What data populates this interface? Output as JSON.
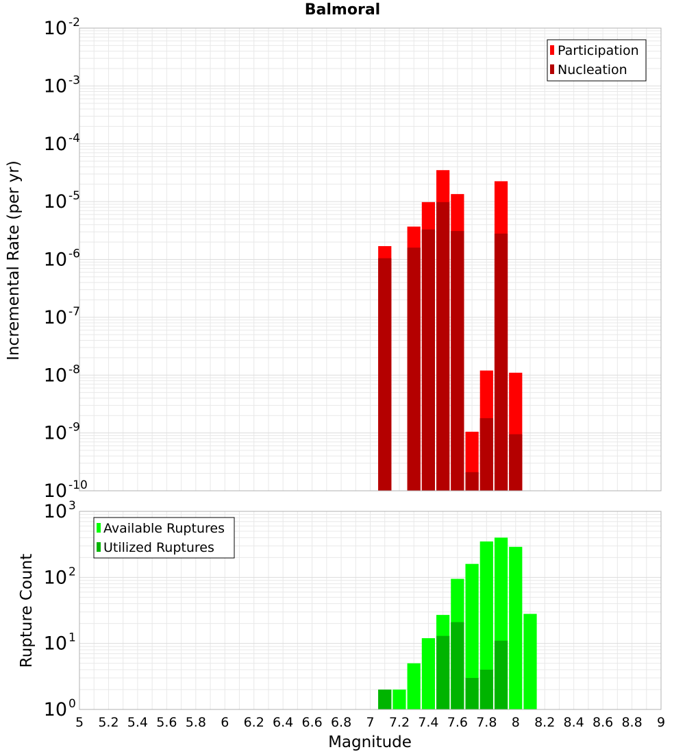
{
  "title": "Balmoral",
  "colors": {
    "participation": "#ff0000",
    "nucleation": "#b40000",
    "available": "#00ff00",
    "utilized": "#00b400",
    "grid": "#e8e8e8",
    "frame": "#b0b0b0"
  },
  "chart_data": [
    {
      "type": "bar",
      "title": "Balmoral",
      "xlabel": "Magnitude",
      "ylabel": "Incremental Rate (per yr)",
      "yscale": "log",
      "xlim": [
        5,
        9
      ],
      "ylim_exponents": [
        -10,
        -2
      ],
      "bin_width": 0.1,
      "x": [
        7.1,
        7.3,
        7.4,
        7.5,
        7.6,
        7.7,
        7.8,
        7.9,
        8.0
      ],
      "series": [
        {
          "name": "Participation",
          "values": [
            1.7e-06,
            3.7e-06,
            9.8e-06,
            3.5e-05,
            1.35e-05,
            1.05e-09,
            1.2e-08,
            2.25e-05,
            1.1e-08
          ]
        },
        {
          "name": "Nucleation",
          "values": [
            1.05e-06,
            1.6e-06,
            3.3e-06,
            9.8e-06,
            3.1e-06,
            2.1e-10,
            1.8e-09,
            2.8e-06,
            9.5e-10
          ]
        }
      ],
      "legend": "top-right"
    },
    {
      "type": "bar",
      "xlabel": "Magnitude",
      "ylabel": "Rupture Count",
      "yscale": "log",
      "xlim": [
        5,
        9
      ],
      "ylim_exponents": [
        0,
        3
      ],
      "bin_width": 0.1,
      "x": [
        6.9,
        7.1,
        7.2,
        7.3,
        7.4,
        7.5,
        7.6,
        7.7,
        7.8,
        7.9,
        8.0,
        8.1
      ],
      "series": [
        {
          "name": "Available Ruptures",
          "values": [
            1,
            2,
            2,
            5,
            12,
            27,
            95,
            160,
            350,
            400,
            290,
            28
          ]
        },
        {
          "name": "Utilized Ruptures",
          "values": [
            0,
            2,
            0,
            1,
            1,
            13,
            21,
            3,
            4,
            11,
            1,
            0
          ]
        }
      ],
      "legend": "top-left"
    }
  ],
  "x_ticks": [
    "5",
    "5.2",
    "5.4",
    "5.6",
    "5.8",
    "6",
    "6.2",
    "6.4",
    "6.6",
    "6.8",
    "7",
    "7.2",
    "7.4",
    "7.6",
    "7.8",
    "8",
    "8.2",
    "8.4",
    "8.6",
    "8.8",
    "9"
  ]
}
